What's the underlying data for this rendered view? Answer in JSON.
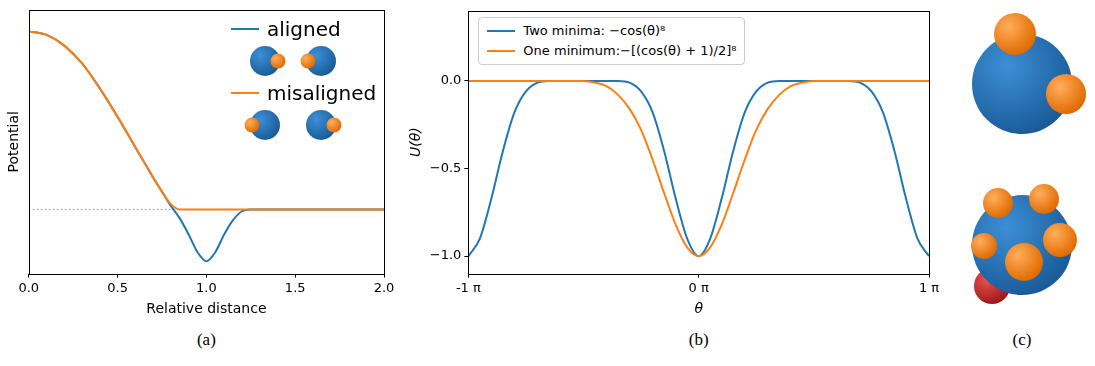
{
  "chart_data": [
    {
      "type": "line",
      "title": "(a)",
      "x_label": "Relative distance",
      "y_label": "Potential",
      "x": [
        0,
        0.1,
        0.2,
        0.3,
        0.4,
        0.5,
        0.6,
        0.7,
        0.75,
        0.8,
        0.85,
        0.9,
        0.95,
        1.0,
        1.05,
        1.1,
        1.15,
        1.2,
        1.25,
        1.3,
        1.5,
        2.0
      ],
      "series": [
        {
          "name": "aligned",
          "color": "#1f77b4",
          "values": [
            1.0,
            0.98,
            0.92,
            0.82,
            0.68,
            0.52,
            0.35,
            0.18,
            0.1,
            0.02,
            -0.05,
            -0.14,
            -0.24,
            -0.29,
            -0.24,
            -0.14,
            -0.06,
            -0.01,
            0,
            0,
            0,
            0
          ]
        },
        {
          "name": "misaligned",
          "color": "#ff7f0e",
          "values": [
            1.0,
            0.98,
            0.92,
            0.82,
            0.68,
            0.52,
            0.35,
            0.18,
            0.1,
            0.03,
            0,
            0,
            0,
            0,
            0,
            0,
            0,
            0,
            0,
            0,
            0,
            0
          ]
        }
      ],
      "xlim": [
        0,
        2
      ],
      "xticks": [
        {
          "value": 0,
          "label": "0.0"
        },
        0.5,
        {
          "value": 1,
          "label": "1.0"
        },
        1.5,
        {
          "value": 2,
          "label": "2.0"
        }
      ],
      "ylim": [
        -0.36,
        1.12
      ],
      "tick_labels": "x",
      "grid": false,
      "legend": "upper right",
      "reference_line": {
        "y": 0,
        "line_style": "dotted",
        "color": "#808080"
      }
    },
    {
      "type": "line",
      "title": "(b)",
      "x_label": "θ",
      "y_label": "U(θ)",
      "x": [
        -1,
        -0.95,
        -0.9,
        -0.85,
        -0.8,
        -0.75,
        -0.7,
        -0.65,
        -0.6,
        -0.55,
        -0.5,
        -0.45,
        -0.4,
        -0.35,
        -0.3,
        -0.25,
        -0.2,
        -0.15,
        -0.1,
        -0.05,
        0,
        0.05,
        0.1,
        0.15,
        0.2,
        0.25,
        0.3,
        0.35,
        0.4,
        0.45,
        0.5,
        0.55,
        0.6,
        0.65,
        0.7,
        0.75,
        0.8,
        0.85,
        0.9,
        0.95,
        1
      ],
      "series": [
        {
          "name": "Two minima: −cos(θ)⁸",
          "color": "#1f77b4",
          "values": [
            -1,
            -0.9,
            -0.67,
            -0.4,
            -0.18,
            -0.06,
            -0.01,
            0,
            0,
            0,
            0,
            0,
            0,
            0,
            -0.01,
            -0.06,
            -0.18,
            -0.4,
            -0.67,
            -0.9,
            -1,
            -0.9,
            -0.67,
            -0.4,
            -0.18,
            -0.06,
            -0.01,
            0,
            0,
            0,
            0,
            0,
            0,
            0,
            -0.01,
            -0.06,
            -0.18,
            -0.4,
            -0.67,
            -0.9,
            -1
          ]
        },
        {
          "name": "One minimum:−[(cos(θ) + 1)/2]⁸",
          "color": "#ff7f0e",
          "values": [
            0,
            0,
            0,
            0,
            0,
            0,
            0,
            0,
            0,
            0,
            0,
            -0.01,
            -0.03,
            -0.08,
            -0.16,
            -0.28,
            -0.45,
            -0.64,
            -0.82,
            -0.95,
            -1,
            -0.95,
            -0.82,
            -0.64,
            -0.45,
            -0.28,
            -0.16,
            -0.08,
            -0.03,
            -0.01,
            0,
            0,
            0,
            0,
            0,
            0,
            0,
            0,
            0,
            0,
            0
          ]
        }
      ],
      "xlim": [
        -1,
        1
      ],
      "xticks": [
        {
          "value": -1,
          "label": "-1 π"
        },
        {
          "value": 0,
          "label": "0 π"
        },
        {
          "value": 1,
          "label": "1 π"
        }
      ],
      "ylim": [
        -1.1,
        0.4
      ],
      "yticks": [
        {
          "value": -1,
          "label": "−1.0"
        },
        {
          "value": -0.5,
          "label": "−0.5"
        },
        {
          "value": 0,
          "label": "0.0"
        }
      ],
      "grid": false,
      "legend": "upper left"
    }
  ],
  "panel_c": {
    "title": "(c)"
  }
}
